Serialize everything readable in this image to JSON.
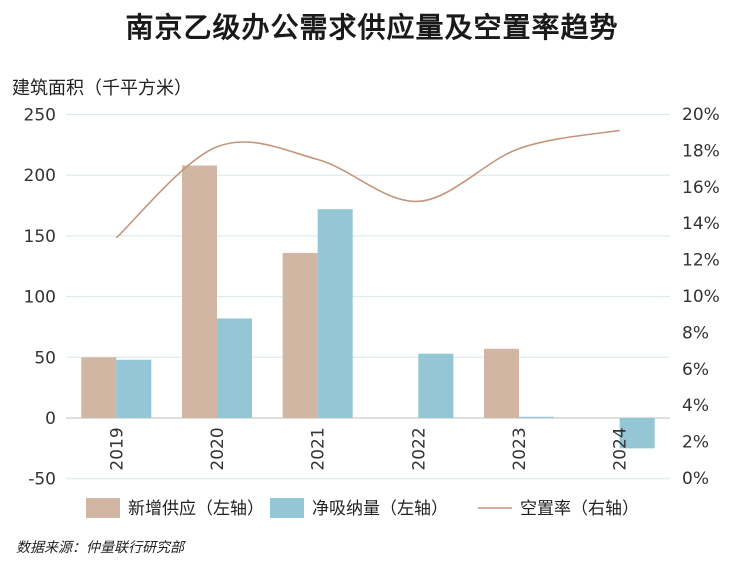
{
  "chart_data": {
    "type": "bar",
    "title": "南京乙级办公需求供应量及空置率趋势",
    "ylabel": "建筑面积（千平方米）",
    "categories": [
      "2019",
      "2020",
      "2021",
      "2022",
      "2023",
      "2024"
    ],
    "series": [
      {
        "name": "新增供应（左轴）",
        "type": "bar",
        "axis": "left",
        "color": "#d2b6a4",
        "values": [
          50,
          208,
          136,
          0,
          57,
          0
        ]
      },
      {
        "name": "净吸纳量（左轴）",
        "type": "bar",
        "axis": "left",
        "color": "#94c6d5",
        "values": [
          48,
          82,
          172,
          53,
          1,
          -25
        ]
      },
      {
        "name": "空置率（右轴）",
        "type": "line",
        "axis": "right",
        "color": "#c4957c",
        "values": [
          13.2,
          18.2,
          17.5,
          15.2,
          18.1,
          19.1
        ]
      }
    ],
    "ylim_left": [
      -50,
      250
    ],
    "yticks_left": [
      "250",
      "200",
      "150",
      "100",
      "50",
      "0",
      "-50"
    ],
    "ylim_right": [
      0,
      20
    ],
    "yticks_right": [
      "20%",
      "18%",
      "16%",
      "14%",
      "12%",
      "10%",
      "8%",
      "6%",
      "4%",
      "2%",
      "0%"
    ],
    "grid": true,
    "legend_position": "bottom"
  },
  "source": "数据来源：仲量联行研究部"
}
